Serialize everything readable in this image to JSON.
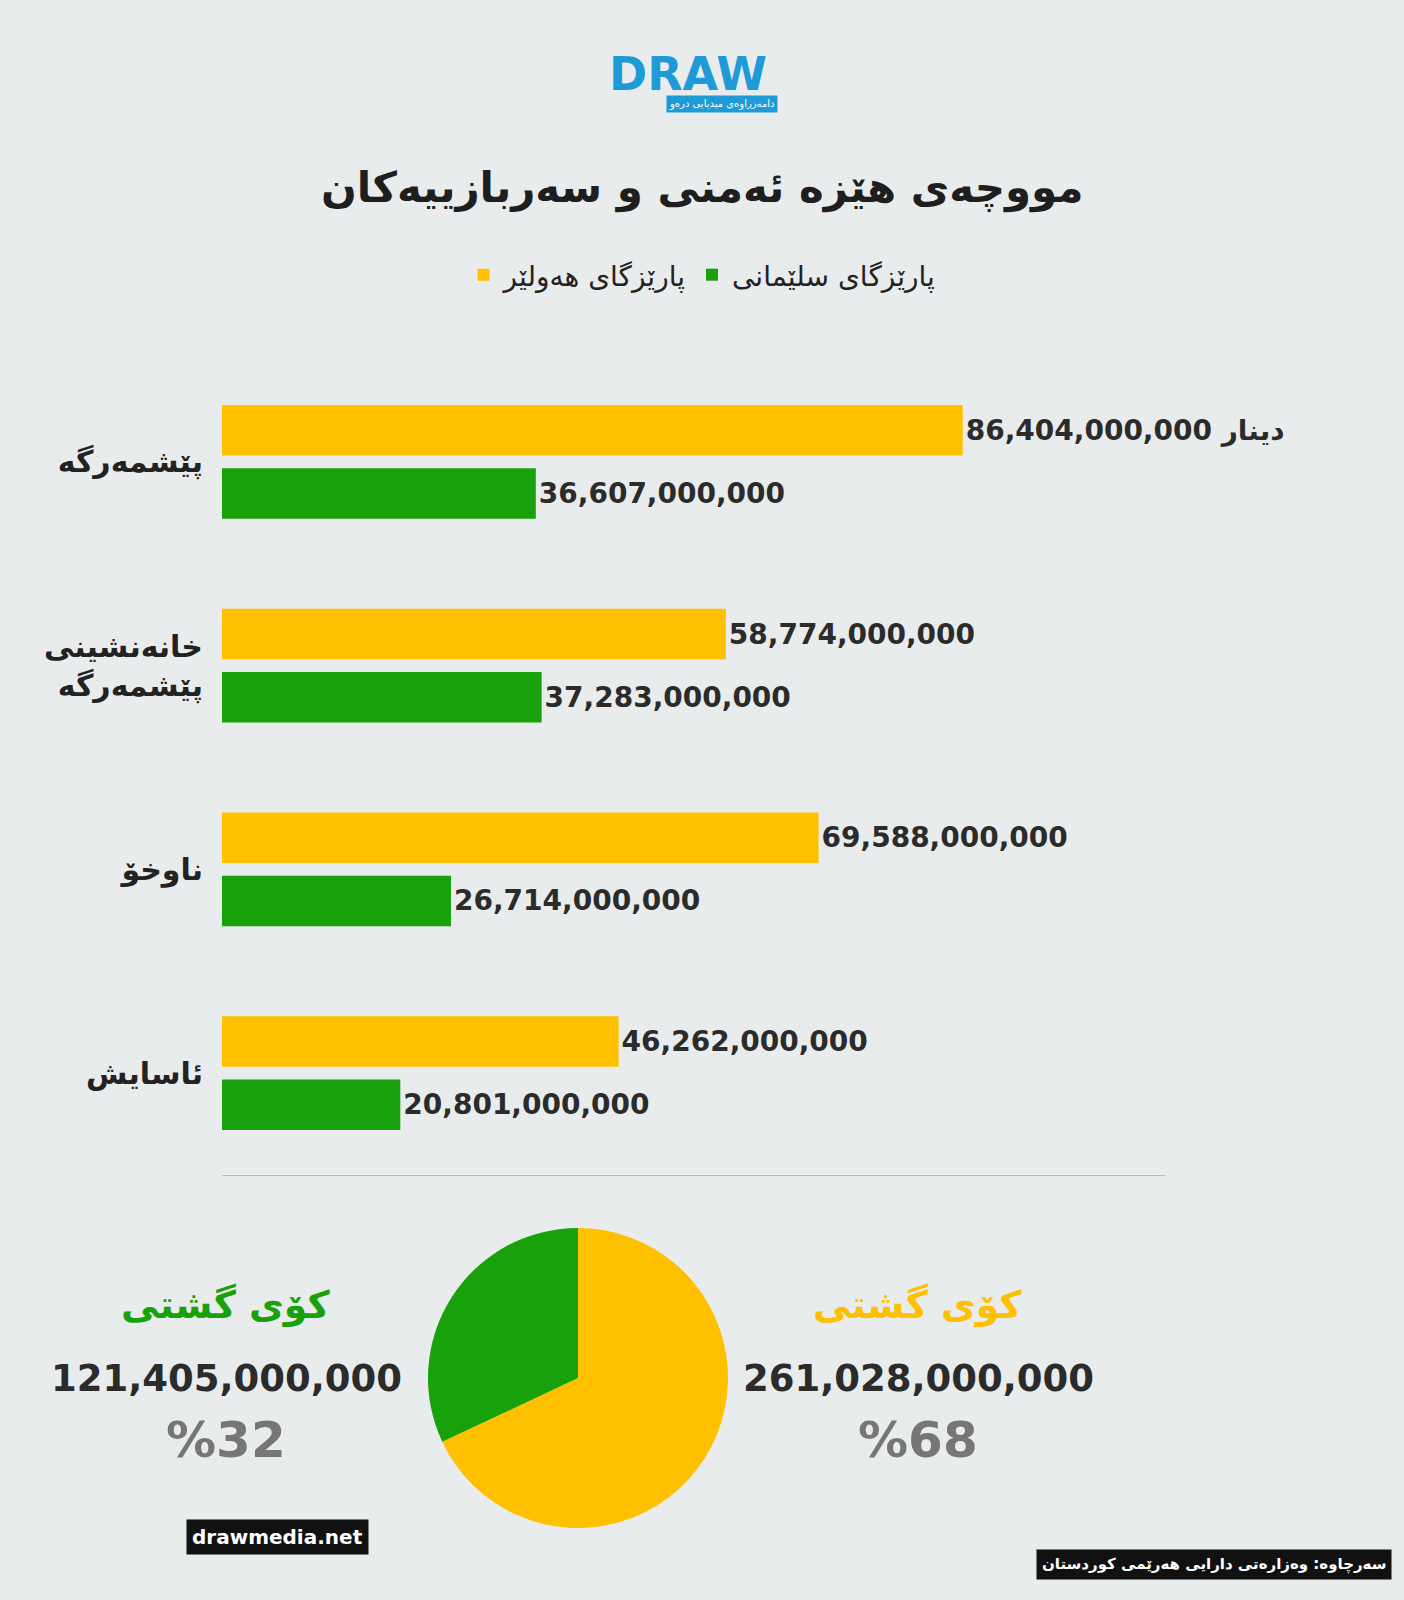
{
  "header": {
    "logo": "DRAW",
    "logo_subtitle": "دامەزراوەی میدیایی درەو"
  },
  "chart_data": [
    {
      "type": "bar",
      "title": "مووچەی هێزە ئەمنی و سەربازییەکان",
      "orientation": "horizontal",
      "categories": [
        "پێشمەرگە",
        "خانەنشینی پێشمەرگە",
        "ناوخۆ",
        "ئاسایش"
      ],
      "series": [
        {
          "name": "پارێزگای هەولێر",
          "color": "#ffc000",
          "values": [
            86404000000,
            58774000000,
            69588000000,
            46262000000
          ],
          "value_labels": [
            "86,404,000,000 دینار",
            "58,774,000,000",
            "69,588,000,000",
            "46,262,000,000"
          ]
        },
        {
          "name": "پارێزگای سلێمانی",
          "color": "#18a10a",
          "values": [
            36607000000,
            37283000000,
            26714000000,
            20801000000
          ],
          "value_labels": [
            "36,607,000,000",
            "37,283,000,000",
            "26,714,000,000",
            "20,801,000,000"
          ]
        }
      ],
      "xlim": [
        0,
        110000000000
      ],
      "data_labels": true,
      "tick_labels": "y",
      "legend": "top",
      "grid": false
    },
    {
      "type": "pie",
      "values": [
        68,
        32
      ],
      "value_labels": [
        "%68",
        "%32"
      ],
      "colors": [
        "#ffc000",
        "#18a10a"
      ],
      "total_title": "کۆی گشتی",
      "totals": [
        261028000000,
        121405000000
      ],
      "total_labels": [
        "261,028,000,000",
        "121,405,000,000"
      ]
    }
  ],
  "footer": {
    "source": "سەرچاوە: وەزارەتی دارایی هەرێمی کوردستان",
    "website": "drawmedia.net"
  }
}
